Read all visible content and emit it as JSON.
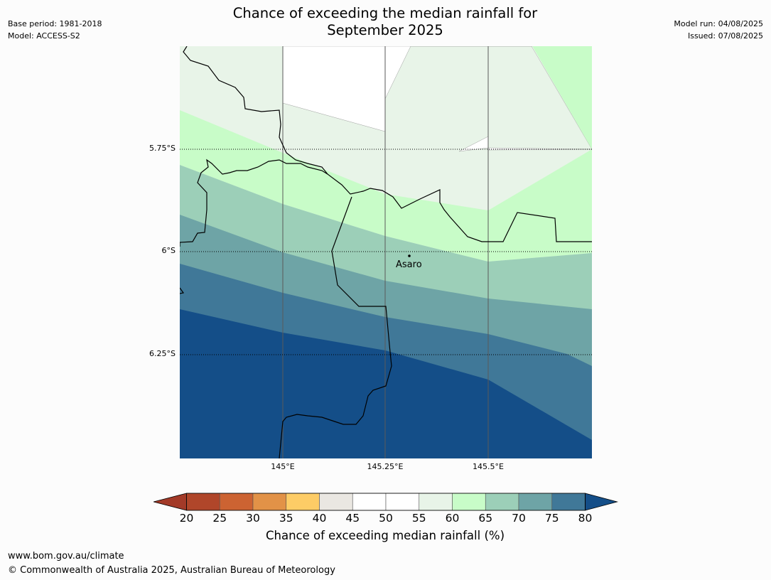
{
  "title_line1": "Chance of exceeding the median rainfall for",
  "title_line2": "September 2025",
  "meta_left": {
    "base_period": "Base period: 1981-2018",
    "model": "Model: ACCESS-S2"
  },
  "meta_right": {
    "model_run": "Model run: 04/08/2025",
    "issued": "Issued: 07/08/2025"
  },
  "map": {
    "lat_labels": [
      "5.75°S",
      "6°S",
      "6.25°S"
    ],
    "lon_labels": [
      "145°E",
      "145.25°E",
      "145.5°E"
    ],
    "place": {
      "name": "Asaro"
    },
    "zone_colors": [
      "#e8f4e8",
      "#c8fcc8",
      "#9ccfb8",
      "#6ea4a6",
      "#407898",
      "#144e88"
    ]
  },
  "colorbar": {
    "ticks": [
      "20",
      "25",
      "30",
      "35",
      "40",
      "45",
      "50",
      "55",
      "60",
      "65",
      "70",
      "75",
      "80"
    ],
    "colors": [
      "#b0462a",
      "#cc6332",
      "#e29247",
      "#fdcc66",
      "#eae7e2",
      "#ffffff",
      "#ffffff",
      "#e8f4e8",
      "#c8fcc8",
      "#9ccfb8",
      "#6ea4a6",
      "#407898"
    ],
    "under_color": "#a33a28",
    "over_color": "#144e88",
    "label": "Chance of exceeding median rainfall (%)"
  },
  "footer": {
    "url": "www.bom.gov.au/climate",
    "copyright": "© Commonwealth of Australia 2025, Australian Bureau of Meteorology"
  }
}
